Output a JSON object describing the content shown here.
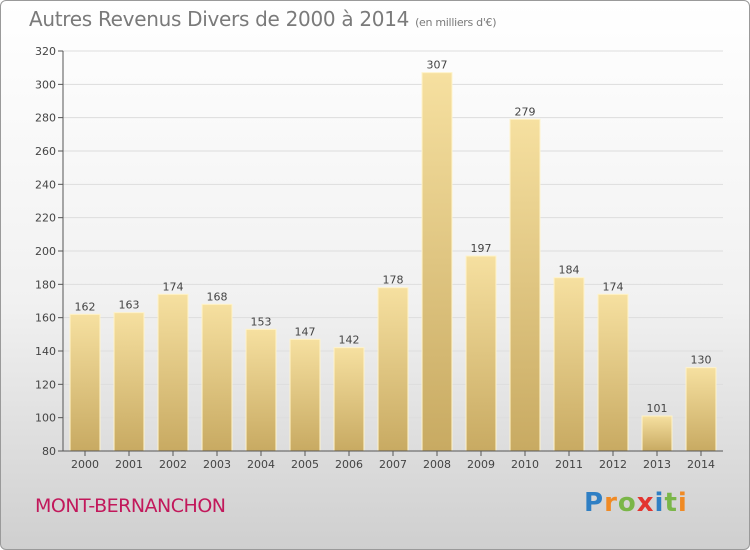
{
  "title": "Autres Revenus Divers de 2000 à 2014",
  "unit_note": "(en milliers d'€)",
  "town": "MONT-BERNANCHON",
  "logo": {
    "letters": [
      "P",
      "r",
      "o",
      "x",
      "i",
      "t",
      "i"
    ],
    "colors": [
      "#2f7fc4",
      "#f08a24",
      "#7ab648",
      "#e3342f",
      "#2f7fc4",
      "#7ab648",
      "#f08a24"
    ]
  },
  "chart_data": {
    "type": "bar",
    "title": "Autres Revenus Divers de 2000 à 2014",
    "categories": [
      "2000",
      "2001",
      "2002",
      "2003",
      "2004",
      "2005",
      "2006",
      "2007",
      "2008",
      "2009",
      "2010",
      "2011",
      "2012",
      "2013",
      "2014"
    ],
    "values": [
      162,
      163,
      174,
      168,
      153,
      147,
      142,
      178,
      307,
      197,
      279,
      184,
      174,
      101,
      130
    ],
    "data_labels": [
      "162",
      "163",
      "174",
      "168",
      "153",
      "147",
      "142",
      "178",
      "307",
      "197",
      "279",
      "184",
      "174",
      "101",
      "130"
    ],
    "ylim": [
      80,
      320
    ],
    "yticks": [
      80,
      100,
      120,
      140,
      160,
      180,
      200,
      220,
      240,
      260,
      280,
      300,
      320
    ],
    "ytick_labels": [
      "80",
      "100",
      "120",
      "140",
      "160",
      "180",
      "200",
      "220",
      "240",
      "260",
      "280",
      "300",
      "320"
    ],
    "xlabel": "",
    "ylabel": "",
    "grid": true,
    "bar_color": "#e6c97a"
  }
}
